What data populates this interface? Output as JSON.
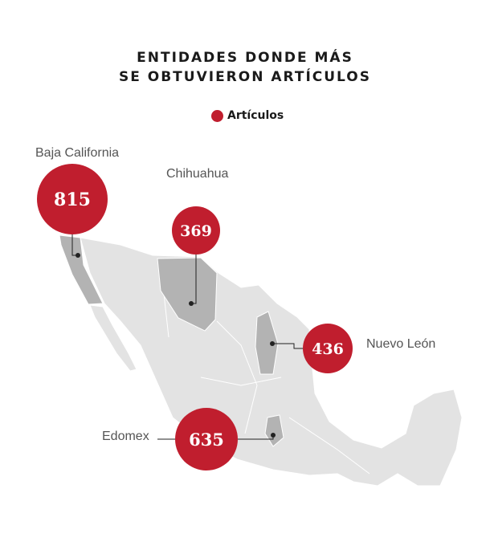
{
  "title": {
    "line1": "ENTIDADES DONDE MÁS",
    "line2": "SE OBTUVIERON ARTÍCULOS"
  },
  "legend": {
    "label": "Artículos",
    "color": "#c01e2e"
  },
  "colors": {
    "land": "#e3e3e3",
    "highlight": "#b3b3b3",
    "border": "#ffffff",
    "bubble": "#c01e2e"
  },
  "states": [
    {
      "name": "Baja California",
      "value": "815"
    },
    {
      "name": "Chihuahua",
      "value": "369"
    },
    {
      "name": "Nuevo León",
      "value": "436"
    },
    {
      "name": "Edomex",
      "value": "635"
    }
  ]
}
